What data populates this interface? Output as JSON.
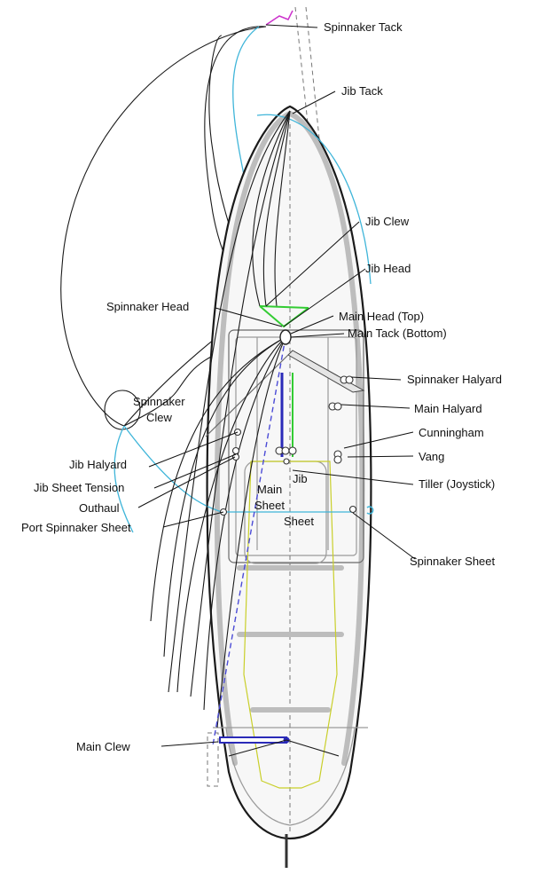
{
  "labels": {
    "spinnaker_tack": "Spinnaker Tack",
    "jib_tack": "Jib Tack",
    "jib_clew": "Jib Clew",
    "jib_head": "Jib Head",
    "spinnaker_head": "Spinnaker Head",
    "main_head_top": "Main Head (Top)",
    "main_tack_bottom": "Main Tack (Bottom)",
    "spinnaker_halyard": "Spinnaker Halyard",
    "spinnaker_clew_line1": "Spinnaker",
    "spinnaker_clew_line2": "Clew",
    "main_halyard": "Main Halyard",
    "cunningham": "Cunningham",
    "vang": "Vang",
    "jib_halyard": "Jib Halyard",
    "jib_sheet_tension": "Jib Sheet Tension",
    "tiller": "Tiller (Joystick)",
    "outhaul": "Outhaul",
    "main_sheet_line1": "Main",
    "main_sheet_line2": "Sheet",
    "jib_sheet_line1": "Jib",
    "jib_sheet_line2": "Sheet",
    "port_spinnaker_sheet": "Port Spinnaker Sheet",
    "spinnaker_sheet": "Spinnaker Sheet",
    "main_clew": "Main Clew"
  },
  "colors": {
    "hull_outline": "#1a1a1a",
    "spinnaker_outline": "#3fb5d9",
    "cockpit_outline": "#c9cf2a",
    "jib_sheet": "#33cc33",
    "main_sheet": "#2a2ab8",
    "spinnaker_tack_line": "#cc33cc"
  }
}
